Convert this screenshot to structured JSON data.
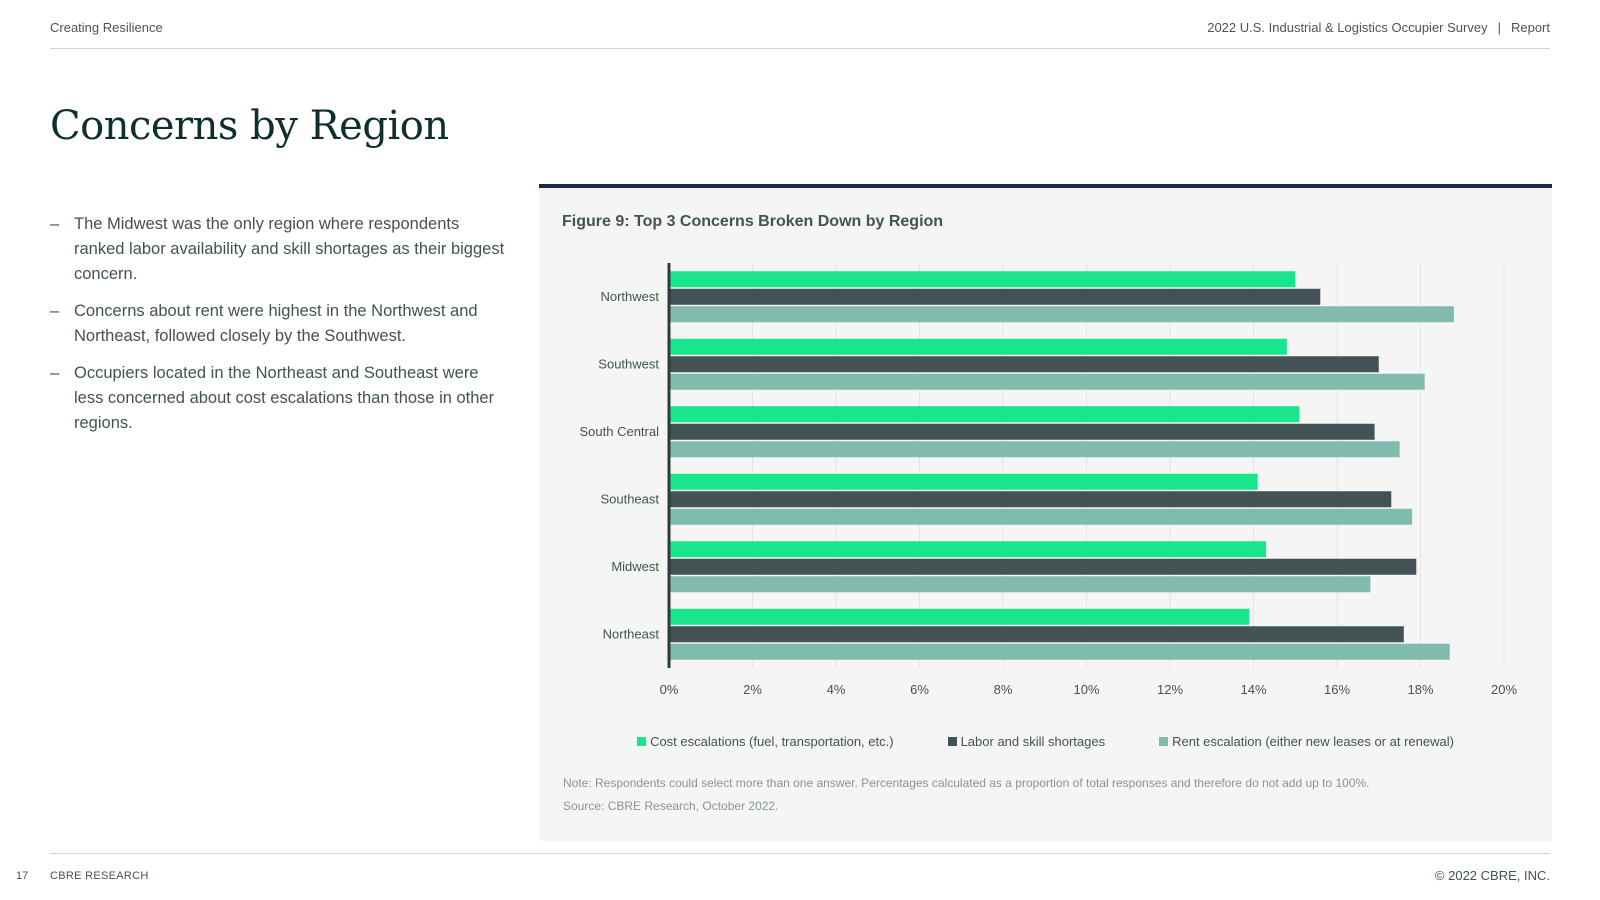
{
  "header": {
    "left": "Creating Resilience",
    "right_title": "2022 U.S. Industrial & Logistics Occupier Survey",
    "separator": "|",
    "right_section": "Report"
  },
  "page_title": "Concerns by Region",
  "bullets": [
    "The Midwest was the only region where respondents ranked labor availability and skill shortages as their biggest concern.",
    "Concerns about rent were highest in the Northwest and Northeast, followed closely by the Southwest.",
    "Occupiers located in the Northeast and Southeast were less concerned about cost escalations than those in other regions."
  ],
  "bullet_dash": "–",
  "figure": {
    "title": "Figure 9: Top 3 Concerns Broken Down by Region",
    "note": "Note: Respondents could select more than one answer. Percentages calculated as a proportion of total responses and therefore do not add up to 100%.",
    "source": "Source: CBRE Research, October 2022."
  },
  "chart_data": {
    "type": "bar",
    "orientation": "horizontal",
    "categories": [
      "Northwest",
      "Southwest",
      "South Central",
      "Southeast",
      "Midwest",
      "Northeast"
    ],
    "series": [
      {
        "name": "Cost escalations (fuel, transportation, etc.)",
        "color": "#19e68c",
        "values": [
          15.0,
          14.8,
          15.1,
          14.1,
          14.3,
          13.9
        ]
      },
      {
        "name": "Labor and skill shortages",
        "color": "#435254",
        "values": [
          15.6,
          17.0,
          16.9,
          17.3,
          17.9,
          17.6
        ]
      },
      {
        "name": "Rent escalation (either new leases or at renewal)",
        "color": "#80bbad",
        "values": [
          18.8,
          18.1,
          17.5,
          17.8,
          16.8,
          18.7
        ]
      }
    ],
    "xlim": [
      0,
      20
    ],
    "xticks": [
      "0%",
      "2%",
      "4%",
      "6%",
      "8%",
      "10%",
      "12%",
      "14%",
      "16%",
      "18%",
      "20%"
    ],
    "grid": true,
    "legend_position": "bottom"
  },
  "footer": {
    "page_number": "17",
    "left": "CBRE RESEARCH",
    "right": "© 2022 CBRE, INC."
  }
}
